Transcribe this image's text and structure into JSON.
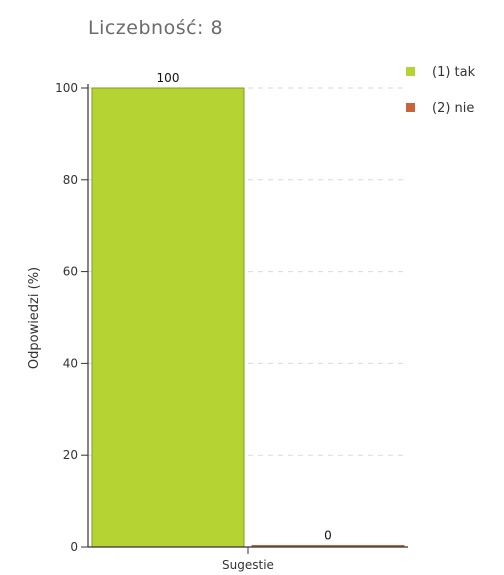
{
  "chart_data": {
    "type": "bar",
    "title": "Liczebność: 8",
    "xlabel": "",
    "ylabel": "Odpowiedzi (%)",
    "ylim": [
      0,
      100
    ],
    "yticks": [
      "0",
      "20",
      "40",
      "60",
      "80",
      "100"
    ],
    "categories": [
      "Sugestie"
    ],
    "grid": true,
    "legend_position": "top-right",
    "series": [
      {
        "name": "(1) tak",
        "values": [
          100
        ],
        "color": "#b5d434",
        "label": "100"
      },
      {
        "name": "(2) nie",
        "values": [
          0
        ],
        "color": "#c8643a",
        "label": "0"
      }
    ]
  }
}
